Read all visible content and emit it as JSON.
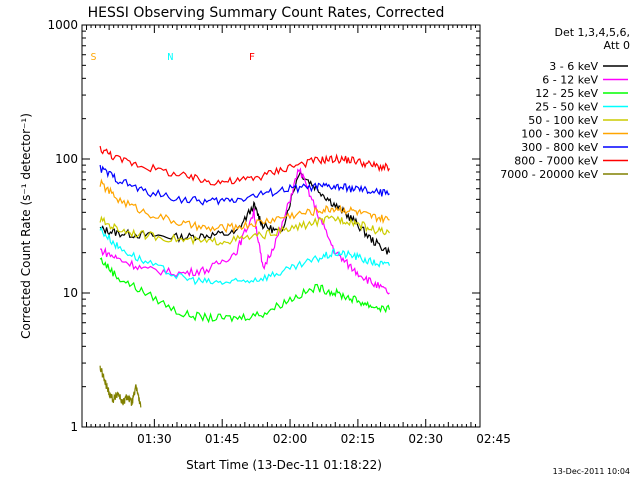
{
  "chart_data": {
    "type": "line",
    "title": "HESSI Observing Summary Count Rates, Corrected",
    "xlabel": "Start Time (13-Dec-11 01:18:22)",
    "ylabel": "Corrected Count Rate (s⁻¹ detector⁻¹)",
    "yscale": "log",
    "ylim": [
      1,
      1000
    ],
    "xlim_minutes": [
      -8,
      80
    ],
    "x_tick_labels": [
      "01:30",
      "01:45",
      "02:00",
      "02:15",
      "02:30",
      "02:45"
    ],
    "x_tick_minutes": [
      8,
      23,
      38,
      53,
      68,
      83
    ],
    "y_tick_labels": [
      "1",
      "10",
      "100",
      "1000"
    ],
    "y_tick_values": [
      1,
      10,
      100,
      1000
    ],
    "legend_title": "Det 1,3,4,5,6,",
    "legend_subtitle": "Att 0",
    "legend_position": "top-right",
    "series": [
      {
        "name": "3 - 6 keV",
        "color": "#000000",
        "x_minutes": [
          -4,
          0,
          6,
          14,
          20,
          26,
          30,
          32,
          36,
          40,
          44,
          48,
          52,
          56,
          60
        ],
        "values": [
          30,
          28,
          27,
          26,
          27,
          28,
          45,
          32,
          28,
          80,
          60,
          45,
          35,
          25,
          20
        ]
      },
      {
        "name": "6 - 12 keV",
        "color": "#ff00ff",
        "x_minutes": [
          -4,
          0,
          6,
          14,
          20,
          26,
          30,
          32,
          36,
          40,
          44,
          48,
          52,
          56,
          60
        ],
        "values": [
          21,
          18,
          15,
          14,
          15,
          20,
          40,
          15,
          30,
          85,
          40,
          20,
          15,
          12,
          10
        ]
      },
      {
        "name": "12 - 25 keV",
        "color": "#00ff00",
        "x_minutes": [
          -4,
          0,
          6,
          14,
          20,
          26,
          32,
          38,
          44,
          48,
          52,
          56,
          60
        ],
        "values": [
          18,
          13,
          10,
          7,
          6.5,
          6.5,
          7,
          9,
          11,
          10,
          9,
          8,
          7.5
        ]
      },
      {
        "name": "25 - 50 keV",
        "color": "#00ffff",
        "x_minutes": [
          -4,
          0,
          6,
          14,
          20,
          26,
          32,
          38,
          44,
          48,
          52,
          56,
          60
        ],
        "values": [
          30,
          22,
          17,
          13,
          12,
          12,
          13,
          15,
          18,
          20,
          19,
          17,
          16
        ]
      },
      {
        "name": "50 - 100 keV",
        "color": "#cccc00",
        "x_minutes": [
          -4,
          0,
          6,
          14,
          20,
          26,
          32,
          38,
          44,
          48,
          52,
          56,
          60
        ],
        "values": [
          35,
          30,
          27,
          25,
          24,
          25,
          27,
          30,
          34,
          36,
          34,
          30,
          28
        ]
      },
      {
        "name": "100 - 300 keV",
        "color": "#ffa500",
        "x_minutes": [
          -4,
          0,
          6,
          14,
          20,
          26,
          32,
          38,
          44,
          48,
          52,
          56,
          60
        ],
        "values": [
          66,
          50,
          40,
          33,
          30,
          31,
          34,
          38,
          41,
          43,
          41,
          37,
          35
        ]
      },
      {
        "name": "300 - 800 keV",
        "color": "#0000ff",
        "x_minutes": [
          -4,
          0,
          6,
          14,
          20,
          26,
          32,
          38,
          44,
          48,
          52,
          56,
          60
        ],
        "values": [
          85,
          70,
          57,
          50,
          48,
          50,
          55,
          60,
          62,
          62,
          60,
          57,
          55
        ]
      },
      {
        "name": "800 - 7000 keV",
        "color": "#ff0000",
        "x_minutes": [
          -4,
          0,
          6,
          14,
          20,
          26,
          32,
          38,
          44,
          48,
          52,
          56,
          60
        ],
        "values": [
          120,
          100,
          88,
          75,
          68,
          68,
          75,
          88,
          98,
          100,
          98,
          90,
          85
        ]
      },
      {
        "name": "7000 - 20000 keV",
        "color": "#808000",
        "x_minutes": [
          -4,
          -3,
          -2,
          -1,
          0,
          1,
          2,
          3,
          4,
          5
        ],
        "values": [
          2.8,
          2.2,
          1.8,
          1.6,
          1.8,
          1.5,
          1.7,
          1.5,
          2.0,
          1.4
        ]
      }
    ],
    "annotations": [
      {
        "label": "S",
        "color": "#ffa500",
        "x_minutes": -7
      },
      {
        "label": "N",
        "color": "#00ffff",
        "x_minutes": 10
      },
      {
        "label": "F",
        "color": "#ff0000",
        "x_minutes": 28
      }
    ],
    "footer_timestamp": "13-Dec-2011 10:04"
  }
}
